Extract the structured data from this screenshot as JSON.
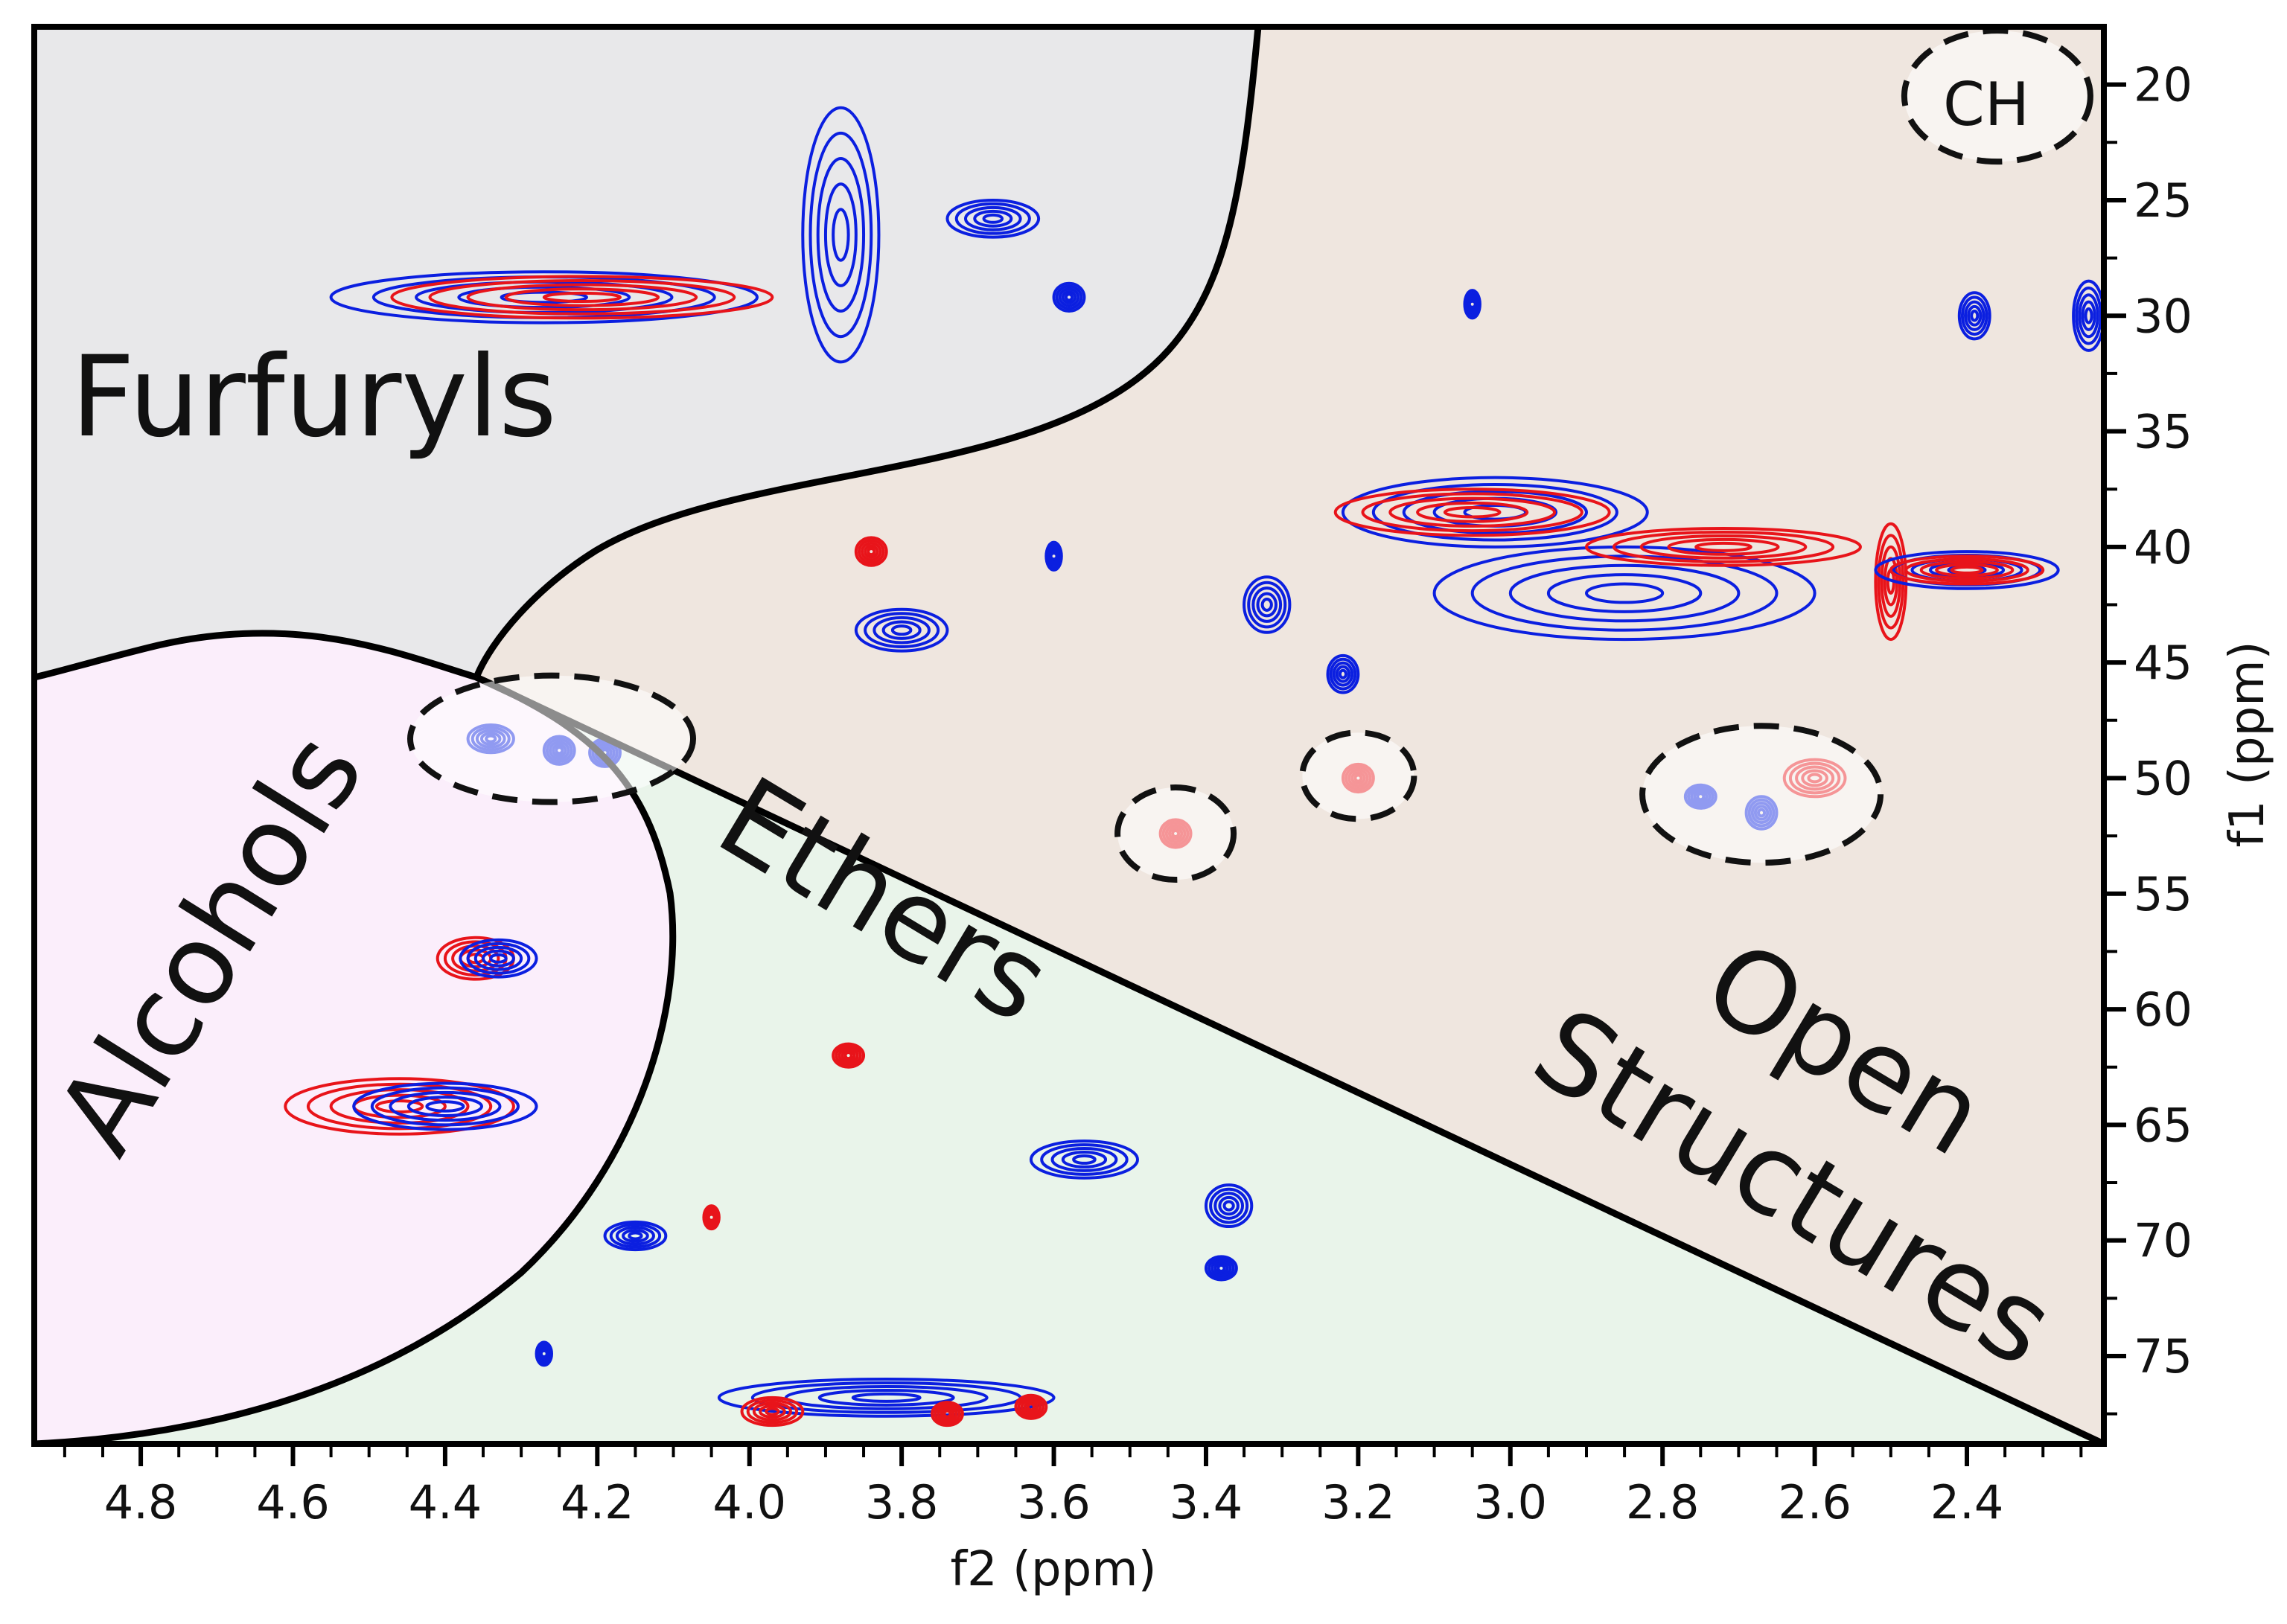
{
  "chart_data": {
    "type": "contour",
    "title": "",
    "xlabel": "f2 (ppm)",
    "ylabel": "f1 (ppm)",
    "xlim": [
      4.94,
      2.22
    ],
    "ylim": [
      17.5,
      78.8
    ],
    "x_reversed": true,
    "y_reversed": true,
    "xticks": [
      "4.8",
      "4.6",
      "4.4",
      "4.2",
      "4.0",
      "3.8",
      "3.6",
      "3.4",
      "3.2",
      "3.0",
      "2.8",
      "2.6",
      "2.4"
    ],
    "yticks": [
      "20",
      "25",
      "30",
      "35",
      "40",
      "45",
      "50",
      "55",
      "60",
      "65",
      "70",
      "75"
    ],
    "grid": false,
    "legend": "none",
    "colors": {
      "blue_series": "#0b1fe0",
      "red_series": "#e8141a",
      "region_border": "#000000"
    },
    "regions": [
      {
        "name": "Furfuryls",
        "fill": "#e8e8ea"
      },
      {
        "name": "Alcohols",
        "fill": "#fbeefb"
      },
      {
        "name": "Ethers",
        "fill": "#e9f4ea"
      },
      {
        "name": "Open Structures",
        "fill": "#efe6df"
      }
    ],
    "region_labels": {
      "furfuryls": "Furfuryls",
      "alcohols": "Alcohols",
      "ethers": "Ethers",
      "open_line1": "Open",
      "open_line2": "Structures",
      "ch": "CH"
    },
    "highlights": [
      {
        "x": 4.26,
        "y": 48.3
      },
      {
        "x": 3.44,
        "y": 52.4
      },
      {
        "x": 3.2,
        "y": 49.9
      },
      {
        "x": 2.67,
        "y": 50.7
      },
      {
        "x": 2.36,
        "y": 20.5
      }
    ],
    "peaks": [
      {
        "x": 4.27,
        "y": 29.2,
        "sx": 0.28,
        "sy": 1.1,
        "color": "blue"
      },
      {
        "x": 4.22,
        "y": 29.2,
        "sx": 0.25,
        "sy": 0.9,
        "color": "red"
      },
      {
        "x": 3.88,
        "y": 26.5,
        "sx": 0.05,
        "sy": 5.5,
        "color": "blue"
      },
      {
        "x": 3.68,
        "y": 25.8,
        "sx": 0.06,
        "sy": 0.8,
        "color": "blue"
      },
      {
        "x": 3.58,
        "y": 29.2,
        "sx": 0.02,
        "sy": 0.6,
        "color": "blue"
      },
      {
        "x": 3.05,
        "y": 29.5,
        "sx": 0.01,
        "sy": 0.6,
        "color": "blue"
      },
      {
        "x": 2.39,
        "y": 30.0,
        "sx": 0.02,
        "sy": 1.0,
        "color": "blue"
      },
      {
        "x": 2.24,
        "y": 30.0,
        "sx": 0.02,
        "sy": 1.5,
        "color": "blue"
      },
      {
        "x": 3.02,
        "y": 38.5,
        "sx": 0.2,
        "sy": 1.5,
        "color": "blue"
      },
      {
        "x": 3.05,
        "y": 38.5,
        "sx": 0.18,
        "sy": 1.0,
        "color": "red"
      },
      {
        "x": 2.85,
        "y": 42.0,
        "sx": 0.25,
        "sy": 2.0,
        "color": "blue"
      },
      {
        "x": 2.72,
        "y": 40.0,
        "sx": 0.18,
        "sy": 0.8,
        "color": "red"
      },
      {
        "x": 2.5,
        "y": 41.5,
        "sx": 0.02,
        "sy": 2.5,
        "color": "red"
      },
      {
        "x": 2.4,
        "y": 41.0,
        "sx": 0.12,
        "sy": 0.8,
        "color": "blue"
      },
      {
        "x": 2.4,
        "y": 41.0,
        "sx": 0.1,
        "sy": 0.6,
        "color": "red"
      },
      {
        "x": 3.84,
        "y": 40.2,
        "sx": 0.02,
        "sy": 0.6,
        "color": "red"
      },
      {
        "x": 3.8,
        "y": 43.6,
        "sx": 0.06,
        "sy": 0.9,
        "color": "blue"
      },
      {
        "x": 3.6,
        "y": 40.4,
        "sx": 0.01,
        "sy": 0.6,
        "color": "blue"
      },
      {
        "x": 3.32,
        "y": 42.5,
        "sx": 0.03,
        "sy": 1.2,
        "color": "blue"
      },
      {
        "x": 3.22,
        "y": 45.5,
        "sx": 0.02,
        "sy": 0.8,
        "color": "blue"
      },
      {
        "x": 4.34,
        "y": 48.3,
        "sx": 0.03,
        "sy": 0.6,
        "color": "blue"
      },
      {
        "x": 4.25,
        "y": 48.8,
        "sx": 0.02,
        "sy": 0.6,
        "color": "blue"
      },
      {
        "x": 4.19,
        "y": 48.9,
        "sx": 0.02,
        "sy": 0.6,
        "color": "blue"
      },
      {
        "x": 3.44,
        "y": 52.4,
        "sx": 0.02,
        "sy": 0.6,
        "color": "red"
      },
      {
        "x": 3.2,
        "y": 50.0,
        "sx": 0.02,
        "sy": 0.6,
        "color": "red"
      },
      {
        "x": 2.75,
        "y": 50.8,
        "sx": 0.02,
        "sy": 0.5,
        "color": "blue"
      },
      {
        "x": 2.67,
        "y": 51.5,
        "sx": 0.02,
        "sy": 0.7,
        "color": "blue"
      },
      {
        "x": 2.6,
        "y": 50.0,
        "sx": 0.04,
        "sy": 0.8,
        "color": "red"
      },
      {
        "x": 4.36,
        "y": 57.8,
        "sx": 0.05,
        "sy": 0.9,
        "color": "red"
      },
      {
        "x": 4.33,
        "y": 57.8,
        "sx": 0.05,
        "sy": 0.8,
        "color": "blue"
      },
      {
        "x": 4.46,
        "y": 64.2,
        "sx": 0.15,
        "sy": 1.2,
        "color": "red"
      },
      {
        "x": 4.4,
        "y": 64.2,
        "sx": 0.12,
        "sy": 1.0,
        "color": "blue"
      },
      {
        "x": 3.87,
        "y": 62.0,
        "sx": 0.02,
        "sy": 0.5,
        "color": "red"
      },
      {
        "x": 3.56,
        "y": 66.5,
        "sx": 0.07,
        "sy": 0.8,
        "color": "blue"
      },
      {
        "x": 3.37,
        "y": 68.5,
        "sx": 0.03,
        "sy": 0.9,
        "color": "blue"
      },
      {
        "x": 3.38,
        "y": 71.2,
        "sx": 0.02,
        "sy": 0.5,
        "color": "blue"
      },
      {
        "x": 4.15,
        "y": 69.8,
        "sx": 0.04,
        "sy": 0.6,
        "color": "blue"
      },
      {
        "x": 4.05,
        "y": 69.0,
        "sx": 0.01,
        "sy": 0.5,
        "color": "red"
      },
      {
        "x": 4.27,
        "y": 74.9,
        "sx": 0.01,
        "sy": 0.5,
        "color": "blue"
      },
      {
        "x": 3.82,
        "y": 76.8,
        "sx": 0.22,
        "sy": 0.8,
        "color": "blue"
      },
      {
        "x": 3.97,
        "y": 77.4,
        "sx": 0.04,
        "sy": 0.6,
        "color": "red"
      },
      {
        "x": 3.74,
        "y": 77.5,
        "sx": 0.02,
        "sy": 0.5,
        "color": "red"
      },
      {
        "x": 3.63,
        "y": 77.2,
        "sx": 0.02,
        "sy": 0.5,
        "color": "red"
      }
    ]
  }
}
